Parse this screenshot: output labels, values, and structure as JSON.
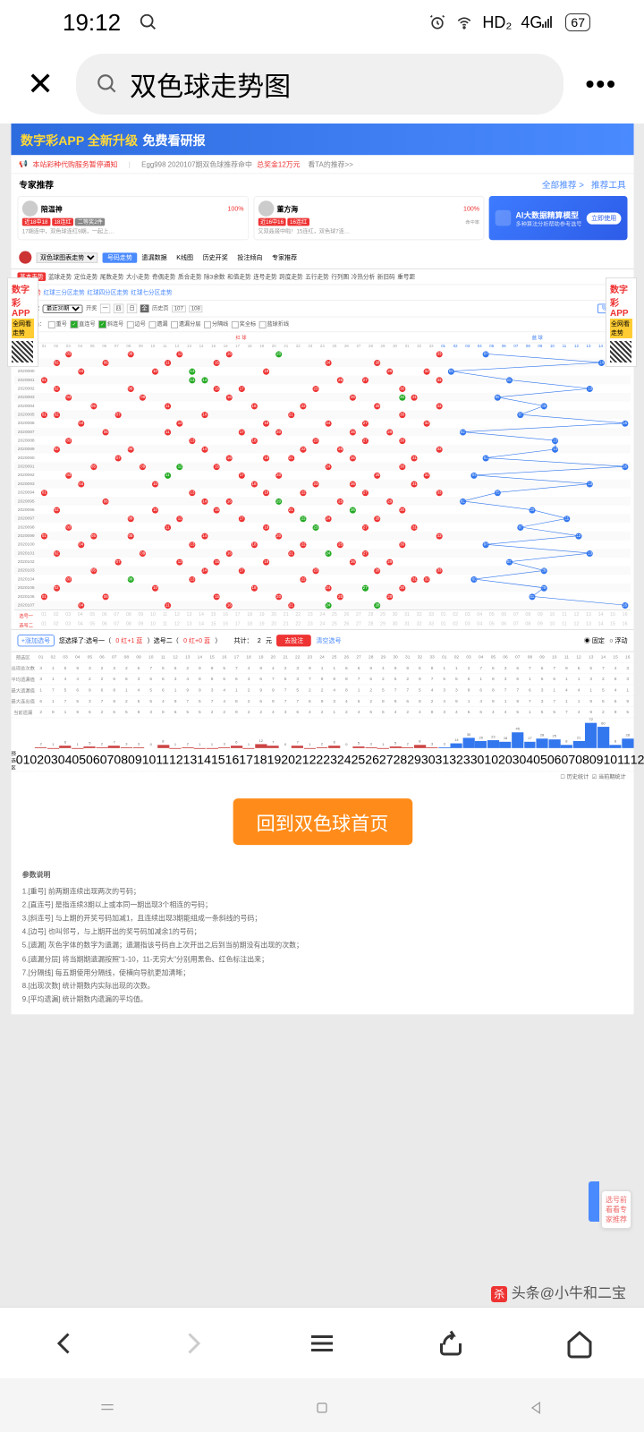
{
  "status": {
    "time": "19:12",
    "net": "HD₂",
    "sig": "4G",
    "battery": "67"
  },
  "search": {
    "query": "双色球走势图"
  },
  "banner": {
    "app": "数字彩APP",
    "upgrade": "全新升级",
    "free": "免费看研报"
  },
  "notice": {
    "l": "本站彩种代购服务暂停通知",
    "m": "Egg998 2020107期双色球推荐命中",
    "prize": "总奖金12万元",
    "r": "看TA的推荐>>"
  },
  "sec": {
    "expert": "专家推荐",
    "all": "全部推荐 >",
    "tool": "推荐工具"
  },
  "experts": [
    {
      "name": "陪温神",
      "pct": "100%",
      "b1": "近18中18",
      "b2": "18连红",
      "b3": "二等奖2件",
      "sub": "17期连中，双色球连红9期，一起上…"
    },
    {
      "name": "董方海",
      "pct": "100%",
      "b1": "近16中16",
      "b2": "16连红",
      "sub2": "命中率",
      "sub": "又双叒叕中啦！15连红，双色球7连…"
    }
  ],
  "ai": {
    "title": "AI大数据精算模型",
    "sub": "多种算法分析帮助参考选号",
    "btn": "立即使用"
  },
  "tabs": {
    "sel": "双色球图表走势",
    "items": [
      "号码走势",
      "遗漏数据",
      "K线图",
      "历史开奖",
      "投注倾向",
      "专家推荐"
    ],
    "active": 0
  },
  "subtabs": [
    "基本走势",
    "蓝球走势",
    "定位走势",
    "尾数走势",
    "大小走势",
    "奇偶走势",
    "质合走势",
    "除3余数",
    "和值走势",
    "连号走势",
    "跨度走势",
    "五行走势",
    "行列图",
    "冷热分析",
    "新旧码",
    "重号距"
  ],
  "subtabs2": [
    "红蓝走势",
    "红球三分区走势",
    "红球四分区走势",
    "红球七分区走势"
  ],
  "filter": {
    "disp": "显示期数",
    "sel": "最近30期",
    "open": "开奖",
    "hist": "历史页",
    "p1": "107",
    "p2": "108",
    "exp": "导出图表"
  },
  "marks": {
    "lbl": "标注颜色：",
    "items": [
      "重号",
      "直连号",
      "斜连号",
      "边号",
      "遗漏",
      "遗漏分层",
      "分隔线",
      "奖全标",
      "蓝球折线"
    ]
  },
  "chart": {
    "red_label": "红 球",
    "blue_label": "蓝 球",
    "period_lbl": "期号",
    "red_cols": 33,
    "blue_cols": 16,
    "periods": [
      "2020078",
      "2020079",
      "2020080",
      "2020081",
      "2020082",
      "2020083",
      "2020084",
      "2020085",
      "2020086",
      "2020087",
      "2020088",
      "2020089",
      "2020090",
      "2020091",
      "2020092",
      "2020093",
      "2020094",
      "2020095",
      "2020096",
      "2020097",
      "2020098",
      "2020099",
      "2020100",
      "2020101",
      "2020102",
      "2020103",
      "2020104",
      "2020105",
      "2020106",
      "2020107"
    ],
    "reds": [
      [
        3,
        8,
        12,
        16,
        20,
        33
      ],
      [
        2,
        6,
        11,
        15,
        24,
        28
      ],
      [
        4,
        10,
        13,
        19,
        29,
        32
      ],
      [
        1,
        13,
        14,
        25,
        27,
        33
      ],
      [
        2,
        8,
        15,
        17,
        23,
        30
      ],
      [
        3,
        9,
        16,
        26,
        30,
        31
      ],
      [
        5,
        11,
        18,
        22,
        28,
        33
      ],
      [
        1,
        2,
        7,
        14,
        21,
        30
      ],
      [
        4,
        12,
        19,
        24,
        27,
        32
      ],
      [
        6,
        11,
        17,
        20,
        26,
        29
      ],
      [
        3,
        13,
        18,
        23,
        27,
        30
      ],
      [
        2,
        8,
        14,
        22,
        25,
        33
      ],
      [
        7,
        16,
        19,
        21,
        26,
        31
      ],
      [
        5,
        9,
        12,
        15,
        24,
        30
      ],
      [
        3,
        11,
        17,
        20,
        28,
        32
      ],
      [
        4,
        10,
        18,
        23,
        26,
        31
      ],
      [
        1,
        13,
        19,
        22,
        27,
        33
      ],
      [
        6,
        14,
        16,
        20,
        25,
        29
      ],
      [
        2,
        10,
        15,
        21,
        26,
        30
      ],
      [
        8,
        12,
        17,
        22,
        24,
        28
      ],
      [
        3,
        11,
        19,
        23,
        27,
        31
      ],
      [
        1,
        5,
        8,
        14,
        20,
        33
      ],
      [
        4,
        13,
        18,
        22,
        25,
        30
      ],
      [
        2,
        9,
        16,
        21,
        24,
        27
      ],
      [
        7,
        12,
        15,
        19,
        26,
        29
      ],
      [
        5,
        14,
        17,
        23,
        28,
        33
      ],
      [
        3,
        8,
        13,
        22,
        31,
        32
      ],
      [
        2,
        10,
        18,
        24,
        27,
        30
      ],
      [
        1,
        6,
        15,
        20,
        25,
        29
      ],
      [
        4,
        11,
        16,
        21,
        24,
        28
      ]
    ],
    "greens": [
      [
        20,
        21
      ],
      [],
      [
        13
      ],
      [
        13,
        14
      ],
      [],
      [
        30
      ],
      [],
      [],
      [],
      [],
      [],
      [],
      [],
      [
        12
      ],
      [
        11
      ],
      [],
      [],
      [
        20
      ],
      [
        26,
        27
      ],
      [
        22
      ],
      [
        23
      ],
      [],
      [],
      [
        24
      ],
      [],
      [],
      [
        8
      ],
      [
        27
      ],
      [],
      [
        24,
        28
      ]
    ],
    "blues": [
      4,
      14,
      1,
      6,
      13,
      5,
      9,
      7,
      16,
      2,
      10,
      10,
      4,
      16,
      3,
      13,
      5,
      2,
      8,
      11,
      7,
      12,
      4,
      13,
      6,
      9,
      3,
      9,
      8,
      16
    ]
  },
  "sel": {
    "r1": "选号一",
    "r2": "选号二"
  },
  "bet": {
    "add": "+涨加选号",
    "picked": "您选择了:选号一（",
    "r1": "0 红+1 蓝",
    "mid": "）选号二（",
    "r2": "0 红+0 蓝",
    "end": "）",
    "total": "共计：",
    "n": "2",
    "unit": "元",
    "go": "去投注",
    "clear": "清空选号",
    "fix": "固定",
    "float": "浮动"
  },
  "stats": {
    "labels": [
      "预选区",
      "出现总次数",
      "平均遗漏值",
      "最大遗漏值",
      "最大连出值",
      "当前遗漏"
    ],
    "nums_label": "预选区"
  },
  "bars": {
    "hist": "历史统计",
    "cur": "当前期统计",
    "red": [
      2,
      1,
      6,
      1,
      5,
      2,
      7,
      3,
      3,
      0,
      8,
      1,
      2,
      1,
      1,
      3,
      6,
      1,
      12,
      7,
      0,
      7,
      1,
      2,
      6,
      0,
      5,
      3,
      1,
      5,
      2,
      8,
      3
    ],
    "blue": [
      3,
      14,
      30,
      20,
      23,
      18,
      45,
      17,
      28,
      25,
      8,
      21,
      72,
      60,
      8,
      28
    ]
  },
  "big_btn": "回到双色球首页",
  "params": {
    "h": "参数说明",
    "items": [
      "1.[重号] 前两期连续出现两次的号码；",
      "2.[直连号] 是指连续3期以上或本同一期出现3个相连的号码；",
      "3.[斜连号] 与上期的开奖号码加减1，且连续出现3期能组成一条斜线的号码；",
      "4.[边号] 也叫邻号，与上期开出的奖号码加减余1的号码；",
      "5.[遗漏] 灰色字体的数字为遗漏；遗漏指该号码自上次开出之后到当前期没有出现的次数；",
      "6.[遗漏分层] 将当期期遗漏按照\"1-10，11-无穷大\"分别用黑色、红色标注出来；",
      "7.[分隔线] 每五期使用分隔线，使横向导航更加清晰；",
      "8.[出现次数] 统计期数内实际出现的次数。",
      "9.[平均遗漏] 统计期数内遗漏的平均值。"
    ]
  },
  "side": {
    "t": "数字彩",
    "a": "APP",
    "y": "全网看走势"
  },
  "float": "选号前看看专家推荐",
  "attrib": "头条@小牛和二宝"
}
